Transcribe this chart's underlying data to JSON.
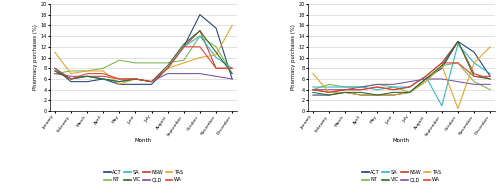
{
  "months": [
    "January",
    "February",
    "March",
    "April",
    "May",
    "June",
    "July",
    "August",
    "September",
    "October",
    "November",
    "December"
  ],
  "chart_A": {
    "ACT": [
      8.0,
      5.5,
      5.5,
      6.0,
      5.0,
      5.0,
      5.0,
      8.0,
      12.0,
      18.0,
      15.5,
      6.0
    ],
    "NSW": [
      7.5,
      6.0,
      6.5,
      6.5,
      6.0,
      6.0,
      5.5,
      8.0,
      12.0,
      15.0,
      8.0,
      8.0
    ],
    "NT": [
      7.0,
      7.5,
      7.5,
      8.0,
      9.5,
      9.0,
      9.0,
      9.0,
      9.5,
      14.0,
      12.0,
      7.0
    ],
    "QLD": [
      7.0,
      6.5,
      6.5,
      6.0,
      5.5,
      6.0,
      5.5,
      7.0,
      7.0,
      7.0,
      6.5,
      6.0
    ],
    "SA": [
      8.0,
      6.0,
      6.5,
      6.0,
      5.5,
      6.0,
      5.5,
      8.0,
      12.0,
      14.0,
      10.0,
      8.0
    ],
    "TAS": [
      11.0,
      7.0,
      7.5,
      7.5,
      5.0,
      6.0,
      5.5,
      8.0,
      9.0,
      10.0,
      10.5,
      16.0
    ],
    "VIC": [
      7.5,
      6.0,
      6.5,
      6.0,
      5.5,
      6.0,
      5.5,
      8.5,
      12.5,
      15.0,
      11.0,
      7.0
    ],
    "WA": [
      8.0,
      6.0,
      7.0,
      7.0,
      6.0,
      6.0,
      5.5,
      8.0,
      12.0,
      12.0,
      8.0,
      8.0
    ]
  },
  "chart_B": {
    "ACT": [
      3.0,
      3.0,
      3.5,
      3.0,
      3.0,
      3.0,
      3.5,
      6.0,
      8.0,
      13.0,
      11.0,
      6.5
    ],
    "NSW": [
      4.0,
      3.5,
      4.0,
      4.0,
      4.5,
      4.0,
      4.5,
      6.5,
      9.0,
      13.0,
      7.0,
      6.0
    ],
    "NT": [
      4.0,
      5.0,
      4.5,
      4.5,
      5.0,
      4.5,
      3.5,
      5.5,
      8.5,
      9.0,
      5.5,
      4.0
    ],
    "QLD": [
      4.0,
      4.0,
      4.0,
      4.5,
      5.0,
      5.0,
      5.5,
      6.0,
      6.0,
      5.5,
      5.0,
      5.0
    ],
    "SA": [
      4.5,
      4.5,
      4.5,
      4.5,
      4.0,
      4.5,
      4.5,
      6.5,
      1.0,
      12.5,
      9.0,
      7.0
    ],
    "TAS": [
      7.0,
      3.5,
      3.5,
      3.0,
      3.0,
      3.0,
      3.5,
      5.5,
      8.5,
      0.5,
      9.0,
      12.0
    ],
    "VIC": [
      3.5,
      3.0,
      3.5,
      3.5,
      3.0,
      3.5,
      3.5,
      6.0,
      8.5,
      13.0,
      6.5,
      6.0
    ],
    "WA": [
      4.0,
      3.5,
      4.0,
      4.0,
      4.5,
      4.0,
      4.5,
      6.5,
      9.0,
      9.0,
      6.5,
      6.5
    ]
  },
  "colors": {
    "ACT": "#1f3d7a",
    "NSW": "#c0392b",
    "NT": "#7ab648",
    "QLD": "#7b4f9e",
    "SA": "#2ab5c8",
    "TAS": "#e8a020",
    "VIC": "#2d6a27",
    "WA": "#e04030"
  },
  "ylim": [
    0,
    20
  ],
  "yticks": [
    0,
    2,
    4,
    6,
    8,
    10,
    12,
    14,
    16,
    18,
    20
  ],
  "ylabel": "Pharmacy purchases (%)",
  "xlabel": "Month",
  "legend_row1": [
    "ACT",
    "NT",
    "SA",
    "VIC"
  ],
  "legend_row2": [
    "NSW",
    "QLD",
    "TAS",
    "WA"
  ]
}
